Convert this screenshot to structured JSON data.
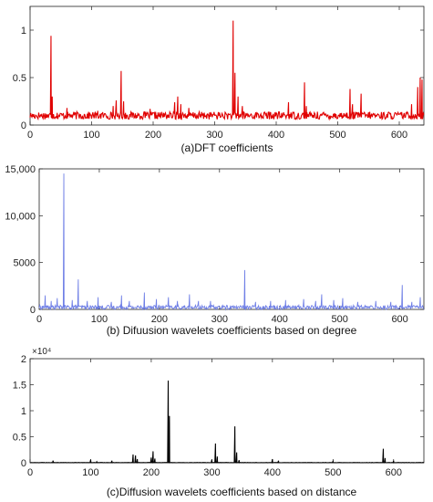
{
  "chart_data": [
    {
      "type": "line",
      "caption": "(a)DFT coefficients",
      "xlim": [
        0,
        640
      ],
      "ylim": [
        0,
        1.25
      ],
      "xticks": [
        0,
        100,
        200,
        300,
        400,
        500,
        600
      ],
      "xtick_labels": [
        "0",
        "100",
        "200",
        "300",
        "400",
        "500",
        "600"
      ],
      "yticks": [
        0,
        0.5,
        1
      ],
      "ytick_labels": [
        "0",
        "0.5",
        "1"
      ],
      "color": "#e00000",
      "baseline": {
        "from": 0,
        "to": 640,
        "low": 0.06,
        "high": 0.14
      },
      "peaks": [
        {
          "x": 34,
          "y": 0.94
        },
        {
          "x": 36,
          "y": 0.3
        },
        {
          "x": 60,
          "y": 0.18
        },
        {
          "x": 110,
          "y": 0.15
        },
        {
          "x": 135,
          "y": 0.2
        },
        {
          "x": 140,
          "y": 0.26
        },
        {
          "x": 148,
          "y": 0.57
        },
        {
          "x": 152,
          "y": 0.25
        },
        {
          "x": 195,
          "y": 0.17
        },
        {
          "x": 235,
          "y": 0.24
        },
        {
          "x": 240,
          "y": 0.3
        },
        {
          "x": 245,
          "y": 0.22
        },
        {
          "x": 258,
          "y": 0.18
        },
        {
          "x": 330,
          "y": 1.1
        },
        {
          "x": 333,
          "y": 0.55
        },
        {
          "x": 338,
          "y": 0.3
        },
        {
          "x": 345,
          "y": 0.2
        },
        {
          "x": 420,
          "y": 0.24
        },
        {
          "x": 446,
          "y": 0.45
        },
        {
          "x": 449,
          "y": 0.2
        },
        {
          "x": 520,
          "y": 0.38
        },
        {
          "x": 524,
          "y": 0.22
        },
        {
          "x": 538,
          "y": 0.33
        },
        {
          "x": 620,
          "y": 0.22
        },
        {
          "x": 630,
          "y": 0.4
        },
        {
          "x": 634,
          "y": 0.5
        },
        {
          "x": 637,
          "y": 0.48
        }
      ]
    },
    {
      "type": "line",
      "caption": "(b) Difuusion wavelets coefficients based on degree",
      "xlim": [
        0,
        640
      ],
      "ylim": [
        0,
        15000
      ],
      "xticks": [
        0,
        100,
        200,
        300,
        400,
        500,
        600
      ],
      "xtick_labels": [
        "0",
        "100",
        "200",
        "300",
        "400",
        "500",
        "600"
      ],
      "yticks": [
        0,
        5000,
        10000,
        15000
      ],
      "ytick_labels": [
        "0",
        "5000",
        "10,000",
        "15,000"
      ],
      "color": "#6f7fe6",
      "baseline": {
        "from": 0,
        "to": 640,
        "low": 0,
        "high": 450
      },
      "peaks": [
        {
          "x": 10,
          "y": 1500
        },
        {
          "x": 20,
          "y": 900
        },
        {
          "x": 30,
          "y": 1200
        },
        {
          "x": 41,
          "y": 14500
        },
        {
          "x": 55,
          "y": 1000
        },
        {
          "x": 65,
          "y": 3200
        },
        {
          "x": 80,
          "y": 900
        },
        {
          "x": 98,
          "y": 1300
        },
        {
          "x": 120,
          "y": 800
        },
        {
          "x": 137,
          "y": 1500
        },
        {
          "x": 150,
          "y": 900
        },
        {
          "x": 175,
          "y": 1800
        },
        {
          "x": 195,
          "y": 1100
        },
        {
          "x": 215,
          "y": 1300
        },
        {
          "x": 230,
          "y": 900
        },
        {
          "x": 250,
          "y": 1600
        },
        {
          "x": 265,
          "y": 900
        },
        {
          "x": 285,
          "y": 900
        },
        {
          "x": 342,
          "y": 4200
        },
        {
          "x": 360,
          "y": 800
        },
        {
          "x": 385,
          "y": 900
        },
        {
          "x": 410,
          "y": 1000
        },
        {
          "x": 440,
          "y": 1100
        },
        {
          "x": 460,
          "y": 900
        },
        {
          "x": 470,
          "y": 1600
        },
        {
          "x": 490,
          "y": 1000
        },
        {
          "x": 505,
          "y": 1200
        },
        {
          "x": 530,
          "y": 800
        },
        {
          "x": 560,
          "y": 900
        },
        {
          "x": 585,
          "y": 800
        },
        {
          "x": 604,
          "y": 2600
        },
        {
          "x": 620,
          "y": 800
        },
        {
          "x": 634,
          "y": 1300
        }
      ]
    },
    {
      "type": "line",
      "caption": "(c)Diffusion wavelets coefficients based on distance",
      "xlim": [
        0,
        650
      ],
      "ylim": [
        0,
        20000
      ],
      "multiplier_label": "×10⁴",
      "xticks": [
        0,
        100,
        200,
        300,
        400,
        500,
        600
      ],
      "xtick_labels": [
        "0",
        "100",
        "200",
        "300",
        "400",
        "500",
        "600"
      ],
      "yticks": [
        0,
        5000,
        10000,
        15000,
        20000
      ],
      "ytick_labels": [
        "0",
        "0.5",
        "1",
        "1.5",
        "2"
      ],
      "color": "#000000",
      "baseline": {
        "from": 0,
        "to": 650,
        "low": 0,
        "high": 60
      },
      "peaks": [
        {
          "x": 38,
          "y": 400
        },
        {
          "x": 100,
          "y": 600
        },
        {
          "x": 110,
          "y": 200
        },
        {
          "x": 135,
          "y": 400
        },
        {
          "x": 170,
          "y": 1600
        },
        {
          "x": 174,
          "y": 1400
        },
        {
          "x": 177,
          "y": 700
        },
        {
          "x": 200,
          "y": 1000
        },
        {
          "x": 203,
          "y": 2200
        },
        {
          "x": 206,
          "y": 800
        },
        {
          "x": 228,
          "y": 15800
        },
        {
          "x": 230,
          "y": 9000
        },
        {
          "x": 300,
          "y": 600
        },
        {
          "x": 306,
          "y": 3700
        },
        {
          "x": 309,
          "y": 1200
        },
        {
          "x": 338,
          "y": 7000
        },
        {
          "x": 341,
          "y": 2000
        },
        {
          "x": 345,
          "y": 500
        },
        {
          "x": 400,
          "y": 700
        },
        {
          "x": 410,
          "y": 400
        },
        {
          "x": 500,
          "y": 300
        },
        {
          "x": 583,
          "y": 2700
        },
        {
          "x": 586,
          "y": 900
        },
        {
          "x": 600,
          "y": 400
        }
      ]
    }
  ]
}
